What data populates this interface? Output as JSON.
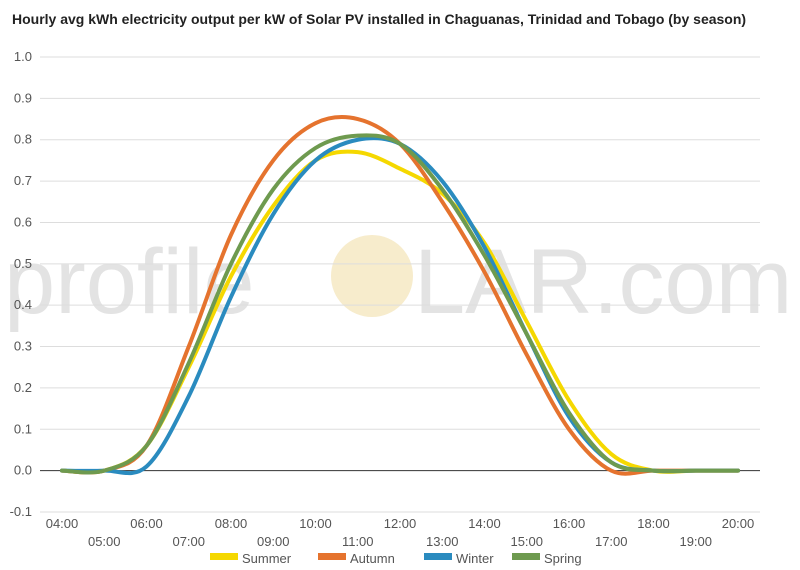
{
  "chart_data": {
    "type": "line",
    "title": "Hourly avg kWh electricity output per kW of Solar PV installed in Chaguanas, Trinidad and Tobago (by season)",
    "xlabel": "",
    "ylabel": "",
    "ylim": [
      -0.1,
      1.0
    ],
    "yticks": [
      "-0.1",
      "0.0",
      "0.1",
      "0.2",
      "0.3",
      "0.4",
      "0.5",
      "0.6",
      "0.7",
      "0.8",
      "0.9",
      "1.0"
    ],
    "x": [
      "04:00",
      "05:00",
      "06:00",
      "07:00",
      "08:00",
      "09:00",
      "10:00",
      "11:00",
      "12:00",
      "13:00",
      "14:00",
      "15:00",
      "16:00",
      "17:00",
      "18:00",
      "19:00",
      "20:00"
    ],
    "grid": true,
    "legend_position": "bottom",
    "series": [
      {
        "name": "Summer",
        "color": "#f5d800",
        "values": [
          0.0,
          0.0,
          0.06,
          0.25,
          0.47,
          0.64,
          0.75,
          0.77,
          0.73,
          0.67,
          0.55,
          0.36,
          0.17,
          0.04,
          0.0,
          0.0,
          0.0
        ]
      },
      {
        "name": "Autumn",
        "color": "#e5732e",
        "values": [
          0.0,
          0.0,
          0.06,
          0.3,
          0.57,
          0.75,
          0.84,
          0.85,
          0.79,
          0.65,
          0.48,
          0.28,
          0.1,
          0.0,
          0.0,
          0.0,
          0.0
        ]
      },
      {
        "name": "Winter",
        "color": "#2a8bbf",
        "values": [
          0.0,
          0.0,
          0.01,
          0.18,
          0.42,
          0.62,
          0.75,
          0.8,
          0.79,
          0.7,
          0.54,
          0.33,
          0.13,
          0.02,
          0.0,
          0.0,
          0.0
        ]
      },
      {
        "name": "Spring",
        "color": "#6e9a4f",
        "values": [
          0.0,
          0.0,
          0.06,
          0.26,
          0.5,
          0.68,
          0.78,
          0.81,
          0.79,
          0.68,
          0.52,
          0.33,
          0.14,
          0.02,
          0.0,
          0.0,
          0.0
        ]
      }
    ]
  },
  "watermark": {
    "left": "profile",
    "right": "LAR.com"
  }
}
